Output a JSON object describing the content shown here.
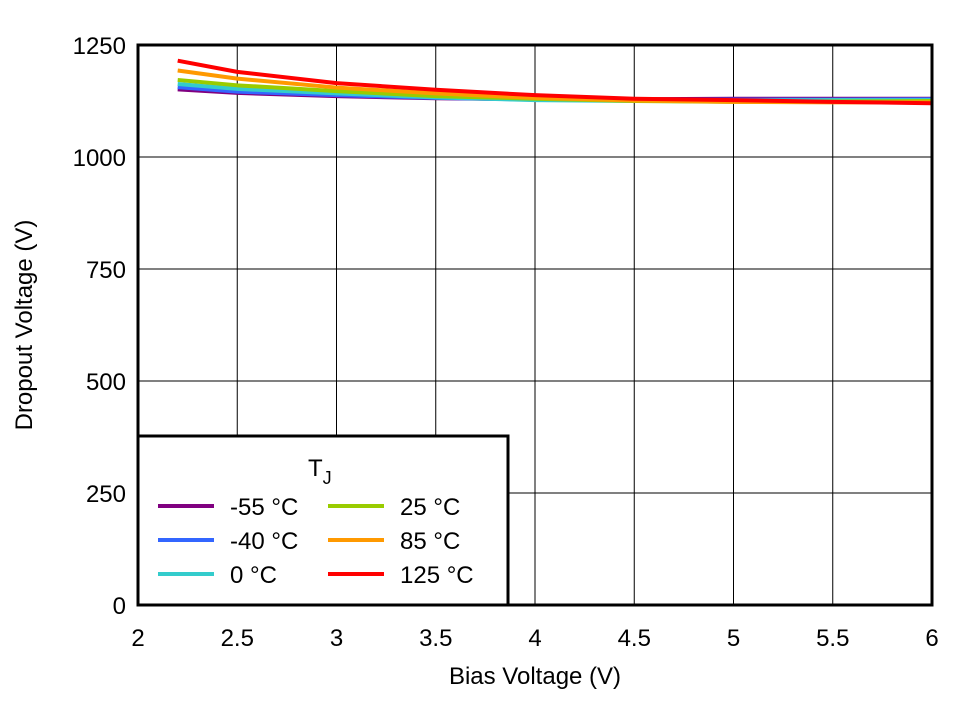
{
  "chart_data": {
    "type": "line",
    "title": "",
    "xlabel": "Bias Voltage (V)",
    "ylabel": "Dropout Voltage (V)",
    "xlim": [
      2,
      6
    ],
    "ylim": [
      0,
      1250
    ],
    "xticks": [
      "2",
      "2.5",
      "3",
      "3.5",
      "4",
      "4.5",
      "5",
      "5.5",
      "6"
    ],
    "yticks": [
      "0",
      "250",
      "500",
      "750",
      "1000",
      "1250"
    ],
    "grid": true,
    "legend": {
      "title": "T",
      "title_sub": "J",
      "placement": "bottom-left"
    },
    "x": [
      2.2,
      2.5,
      3,
      3.5,
      4,
      4.5,
      5,
      5.5,
      6
    ],
    "series": [
      {
        "name": "-55 °C",
        "color": "#800080",
        "values": [
          1151,
          1143,
          1136,
          1131,
          1129,
          1129,
          1130,
          1130,
          1130
        ]
      },
      {
        "name": "-40 °C",
        "color": "#3366ff",
        "values": [
          1156,
          1146,
          1138,
          1132,
          1128,
          1127,
          1128,
          1128,
          1129
        ]
      },
      {
        "name": "0 °C",
        "color": "#33cccc",
        "values": [
          1163,
          1152,
          1142,
          1133,
          1127,
          1125,
          1126,
          1127,
          1127
        ]
      },
      {
        "name": "25 °C",
        "color": "#99cc00",
        "values": [
          1172,
          1160,
          1147,
          1136,
          1130,
          1125,
          1123,
          1124,
          1125
        ]
      },
      {
        "name": "85 °C",
        "color": "#ff9900",
        "values": [
          1193,
          1175,
          1155,
          1142,
          1132,
          1126,
          1123,
          1122,
          1122
        ]
      },
      {
        "name": "125 °C",
        "color": "#ff0000",
        "values": [
          1215,
          1190,
          1165,
          1150,
          1138,
          1130,
          1127,
          1123,
          1120
        ]
      }
    ]
  }
}
